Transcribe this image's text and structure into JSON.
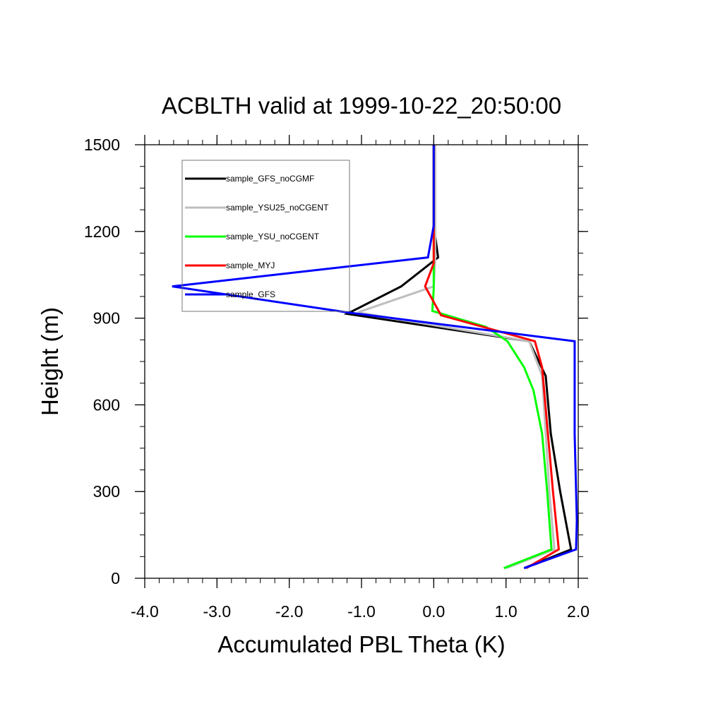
{
  "chart_data": {
    "type": "line",
    "title": "ACBLTH valid at 1999-10-22_20:50:00",
    "xlabel": "Accumulated PBL Theta (K)",
    "ylabel": "Height (m)",
    "xlim": [
      -4.0,
      2.0
    ],
    "ylim": [
      0,
      1500
    ],
    "x_ticks": [
      -4.0,
      -3.0,
      -2.0,
      -1.0,
      0.0,
      1.0,
      2.0
    ],
    "x_tick_labels": [
      "-4.0",
      "-3.0",
      "-2.0",
      "-1.0",
      "0.0",
      "1.0",
      "2.0"
    ],
    "y_ticks": [
      0,
      300,
      600,
      900,
      1200,
      1500
    ],
    "y_tick_labels": [
      "0",
      "300",
      "600",
      "900",
      "1200",
      "1500"
    ],
    "grid": false,
    "legend_position": "top-left",
    "series": [
      {
        "name": "sample_GFS_noCGMF",
        "color": "#000000",
        "points": [
          [
            1.25,
            35
          ],
          [
            1.9,
            100
          ],
          [
            1.75,
            300
          ],
          [
            1.62,
            500
          ],
          [
            1.55,
            700
          ],
          [
            1.32,
            820
          ],
          [
            -1.2,
            915
          ],
          [
            -0.45,
            1010
          ],
          [
            0.06,
            1110
          ],
          [
            0.0,
            1220
          ],
          [
            0.0,
            1500
          ]
        ]
      },
      {
        "name": "sample_YSU25_noCGENT",
        "color": "#bfbfbf",
        "points": [
          [
            1.0,
            35
          ],
          [
            1.67,
            100
          ],
          [
            1.6,
            300
          ],
          [
            1.55,
            500
          ],
          [
            1.5,
            700
          ],
          [
            1.32,
            820
          ],
          [
            -1.05,
            920
          ],
          [
            0.0,
            1010
          ],
          [
            0.02,
            1100
          ],
          [
            0.02,
            1220
          ],
          [
            0.02,
            1500
          ]
        ]
      },
      {
        "name": "sample_YSU_noCGENT",
        "color": "#00ff00",
        "points": [
          [
            0.97,
            35
          ],
          [
            1.63,
            100
          ],
          [
            1.57,
            300
          ],
          [
            1.5,
            500
          ],
          [
            1.38,
            650
          ],
          [
            1.25,
            730
          ],
          [
            1.02,
            820
          ],
          [
            0.72,
            870
          ],
          [
            -0.02,
            925
          ],
          [
            0.0,
            1000
          ],
          [
            0.0,
            1500
          ]
        ]
      },
      {
        "name": "sample_MYJ",
        "color": "#ff0000",
        "points": [
          [
            1.28,
            35
          ],
          [
            1.73,
            100
          ],
          [
            1.65,
            300
          ],
          [
            1.58,
            500
          ],
          [
            1.5,
            730
          ],
          [
            1.4,
            820
          ],
          [
            0.1,
            910
          ],
          [
            -0.12,
            1010
          ],
          [
            0.0,
            1090
          ],
          [
            0.0,
            1500
          ]
        ]
      },
      {
        "name": "sample_GFS",
        "color": "#0000ff",
        "points": [
          [
            1.25,
            35
          ],
          [
            1.97,
            100
          ],
          [
            1.98,
            200
          ],
          [
            1.95,
            500
          ],
          [
            1.95,
            820
          ],
          [
            -1.2,
            920
          ],
          [
            -3.62,
            1010
          ],
          [
            -0.08,
            1110
          ],
          [
            0.0,
            1220
          ],
          [
            0.0,
            1500
          ]
        ]
      }
    ]
  }
}
